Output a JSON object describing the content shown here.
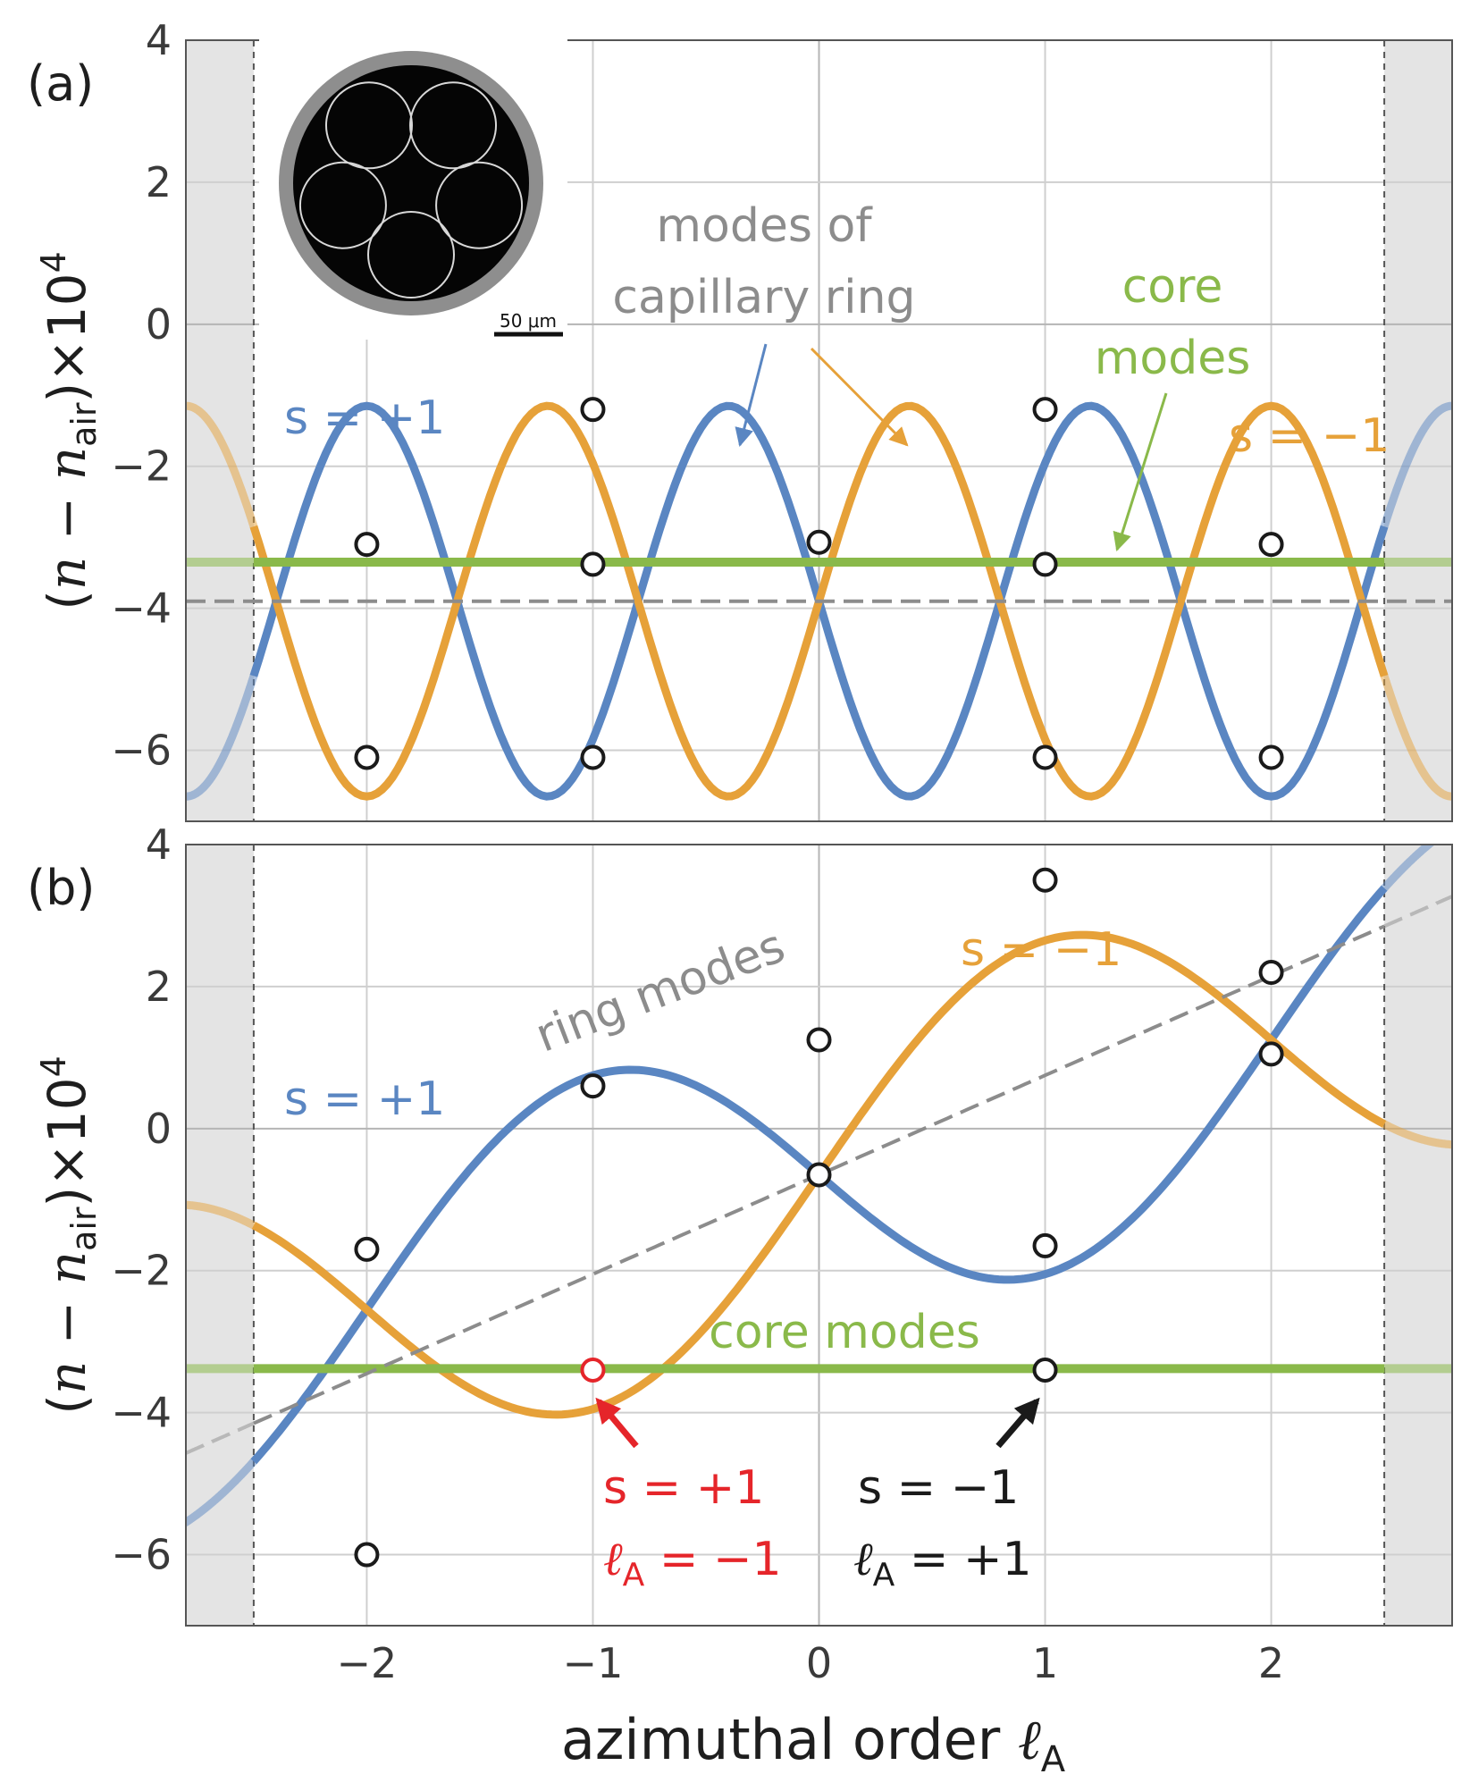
{
  "chart_data": [
    {
      "panel": "(a)",
      "type": "line",
      "ylabel": "(n − n_air)×10^4",
      "xlim": [
        -2.8,
        2.8
      ],
      "ylim": [
        -7,
        4
      ],
      "y_ticks": [
        -6,
        -4,
        -2,
        0,
        2,
        4
      ],
      "x_gridlines": [
        -2,
        -1,
        0,
        1,
        2
      ],
      "grid": true,
      "shaded_regions": [
        [
          -2.8,
          -2.5
        ],
        [
          2.5,
          2.8
        ]
      ],
      "boundary_lines": [
        -2.5,
        2.5
      ],
      "series": [
        {
          "name": "s = +1",
          "color": "#5a86c2",
          "formula": "y = -3.9 - 2.75*sin(1.25*pi*x)",
          "x_range": [
            -2.8,
            2.8
          ]
        },
        {
          "name": "s = -1",
          "color": "#e6a139",
          "formula": "y = -3.9 + 2.75*sin(1.25*pi*x)",
          "x_range": [
            -2.8,
            2.8
          ]
        },
        {
          "name": "core modes",
          "color": "#8ab94a",
          "constant": -3.35,
          "x_range": [
            -2.8,
            2.8
          ]
        },
        {
          "name": "",
          "style": "dashed",
          "color": "#8c8c8c",
          "constant": -3.9,
          "x_range": [
            -2.8,
            2.8
          ]
        }
      ],
      "points": [
        {
          "x": -2,
          "y": -3.1
        },
        {
          "x": -2,
          "y": -6.1
        },
        {
          "x": -1,
          "y": -1.2
        },
        {
          "x": -1,
          "y": -3.38
        },
        {
          "x": -1,
          "y": -6.1
        },
        {
          "x": 0,
          "y": -3.07
        },
        {
          "x": 1,
          "y": -1.2
        },
        {
          "x": 1,
          "y": -3.38
        },
        {
          "x": 1,
          "y": -6.1
        },
        {
          "x": 2,
          "y": -3.1
        },
        {
          "x": 2,
          "y": -6.1
        }
      ],
      "annotations": [
        {
          "key": "capillary_line1",
          "text": "modes of"
        },
        {
          "key": "capillary_line2",
          "text": "capillary ring"
        },
        {
          "key": "core_line1",
          "text": "core"
        },
        {
          "key": "core_line2",
          "text": "modes"
        },
        {
          "key": "s_plus",
          "text": "s = +1"
        },
        {
          "key": "s_minus",
          "text": "s = −1"
        }
      ],
      "inset": {
        "scale_bar_label": "50 μm"
      }
    },
    {
      "panel": "(b)",
      "type": "line",
      "ylabel": "(n − n_air)×10^4",
      "xlabel": "azimuthal order ℓ_A",
      "xlim": [
        -2.8,
        2.8
      ],
      "ylim": [
        -7,
        4
      ],
      "y_ticks": [
        -6,
        -4,
        -2,
        0,
        2,
        4
      ],
      "x_ticks": [
        -2,
        -1,
        0,
        1,
        2
      ],
      "grid": true,
      "shaded_regions": [
        [
          -2.8,
          -2.5
        ],
        [
          2.5,
          2.8
        ]
      ],
      "boundary_lines": [
        -2.5,
        2.5
      ],
      "series": [
        {
          "name": "s = +1",
          "color": "#5a86c2",
          "formula": "y = -0.65 + 0.95*x - 2.35*sin(0.5*pi*x)",
          "x_range": [
            -2.8,
            2.8
          ]
        },
        {
          "name": "s = -1",
          "color": "#e6a139",
          "formula": "y = -0.65 + 0.95*x + 2.35*sin(0.5*pi*x)",
          "x_range": [
            -2.8,
            2.8
          ]
        },
        {
          "name": "core modes",
          "color": "#8ab94a",
          "constant": -3.38,
          "x_range": [
            -2.8,
            2.8
          ]
        },
        {
          "name": "ring modes",
          "style": "dashed",
          "color": "#8c8c8c",
          "formula": "y = -0.65 + 1.4*x",
          "x_range": [
            -2.8,
            2.8
          ]
        }
      ],
      "points": [
        {
          "x": -2,
          "y": -1.7
        },
        {
          "x": -2,
          "y": -6.0
        },
        {
          "x": -1,
          "y": 0.6
        },
        {
          "x": -1,
          "y": -3.4,
          "highlight": "red"
        },
        {
          "x": 0,
          "y": 1.25
        },
        {
          "x": 0,
          "y": -0.65
        },
        {
          "x": 1,
          "y": 3.5
        },
        {
          "x": 1,
          "y": -1.65
        },
        {
          "x": 1,
          "y": -3.4
        },
        {
          "x": 2,
          "y": 2.2
        },
        {
          "x": 2,
          "y": 1.05
        }
      ],
      "annotations": [
        {
          "key": "ring_modes",
          "text": "ring modes"
        },
        {
          "key": "core_modes",
          "text": "core modes"
        },
        {
          "key": "s_plus",
          "text": "s = +1"
        },
        {
          "key": "s_minus",
          "text": "s = −1"
        },
        {
          "key": "red_s",
          "text": "s = +1"
        },
        {
          "key": "red_l",
          "text": "ℓ_A = −1"
        },
        {
          "key": "black_s",
          "text": "s = −1"
        },
        {
          "key": "black_l",
          "text": "ℓ_A = +1"
        }
      ]
    }
  ],
  "labels": {
    "panel_a": "(a)",
    "panel_b": "(b)",
    "ylabel_paren_open": "(",
    "ylabel_n": "n",
    "ylabel_minus": " − ",
    "ylabel_n2": "n",
    "ylabel_sub": "air",
    "ylabel_close": ")×10",
    "ylabel_exp": "4",
    "xlabel_text": "azimuthal order ",
    "xlabel_ell": "ℓ",
    "xlabel_sub": "A",
    "a_modes_of": "modes of",
    "a_capillary_ring": "capillary ring",
    "a_core": "core",
    "a_modes": "modes",
    "a_s_plus": "s = +1",
    "a_s_minus": "s = −1",
    "b_ring_modes": "ring modes",
    "b_core_modes": "core modes",
    "b_s_plus": "s = +1",
    "b_s_minus": "s = −1",
    "b_red_s": "s = +1",
    "b_red_ell": "ℓ",
    "b_red_sub": "A",
    "b_red_val": " = −1",
    "b_black_s": "s = −1",
    "b_black_ell": "ℓ",
    "b_black_sub": "A",
    "b_black_val": " = +1",
    "scale_bar": "50 μm"
  },
  "colors": {
    "blue": "#5a86c2",
    "orange": "#e6a139",
    "green": "#8ab94a",
    "gray": "#8c8c8c",
    "red": "#e5252a",
    "shade": "#e4e4e4",
    "grid": "#cfcfcf"
  }
}
